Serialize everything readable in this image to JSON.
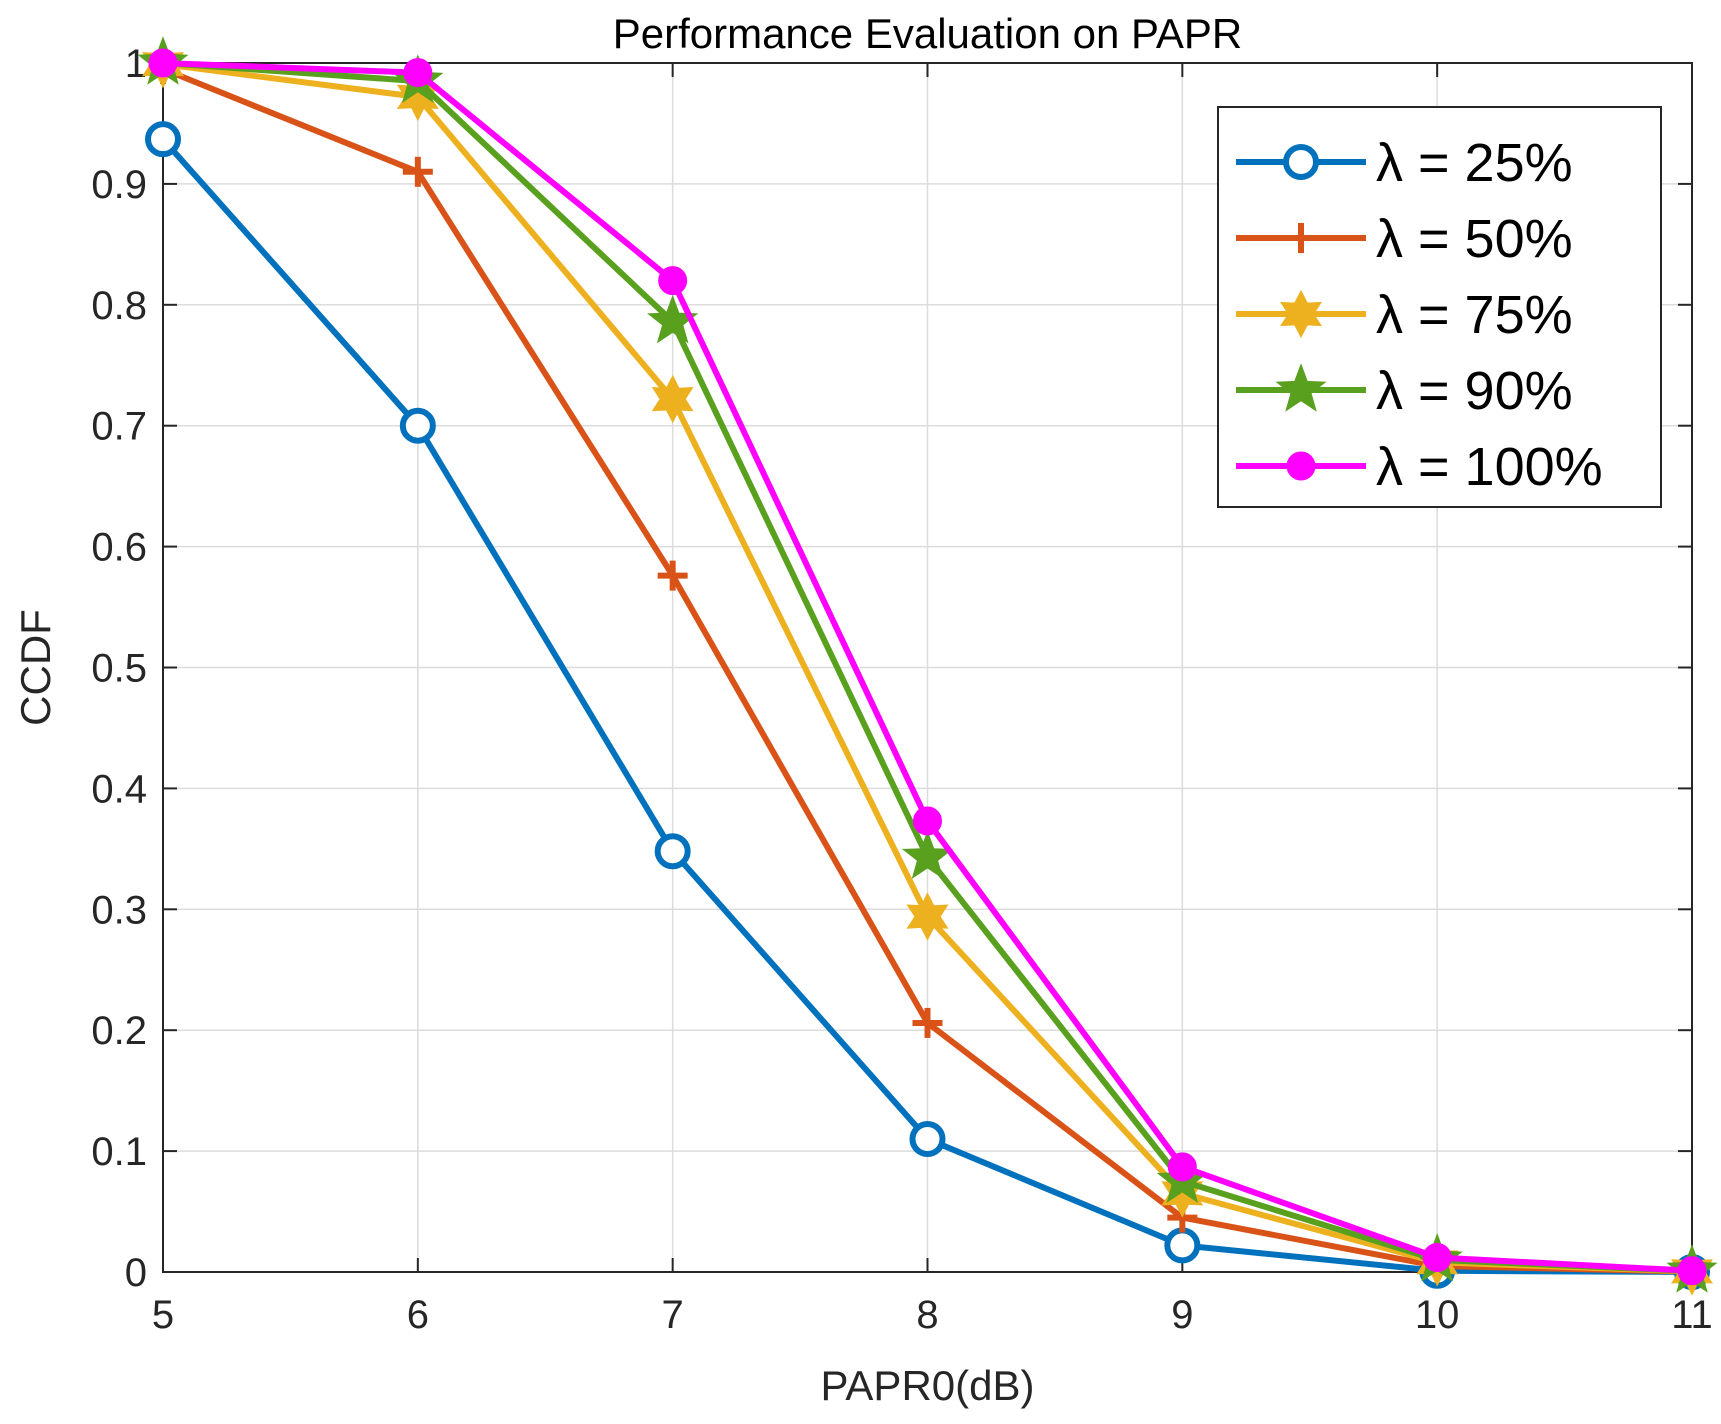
{
  "chart_data": {
    "type": "line",
    "title": "Performance Evaluation on PAPR",
    "xlabel": "PAPR0(dB)",
    "ylabel": "CCDF",
    "xlim": [
      5,
      11
    ],
    "ylim": [
      0,
      1
    ],
    "x": [
      5,
      6,
      7,
      8,
      9,
      10,
      11
    ],
    "xticks": [
      5,
      6,
      7,
      8,
      9,
      10,
      11
    ],
    "yticks": [
      0,
      0.1,
      0.2,
      0.3,
      0.4,
      0.5,
      0.6,
      0.7,
      0.8,
      0.9,
      1
    ],
    "xtick_labels": [
      "5",
      "6",
      "7",
      "8",
      "9",
      "10",
      "11"
    ],
    "ytick_labels": [
      "0",
      "0.1",
      "0.2",
      "0.3",
      "0.4",
      "0.5",
      "0.6",
      "0.7",
      "0.8",
      "0.9",
      "1"
    ],
    "grid": true,
    "legend_position": "top-right",
    "series": [
      {
        "name": "λ = 25%",
        "color": "#0072BD",
        "marker": "circle",
        "values": [
          0.937,
          0.7,
          0.348,
          0.11,
          0.022,
          0.001,
          0.0
        ]
      },
      {
        "name": "λ = 50%",
        "color": "#D95319",
        "marker": "plus",
        "values": [
          0.995,
          0.91,
          0.576,
          0.206,
          0.045,
          0.005,
          0.0003
        ]
      },
      {
        "name": "λ = 75%",
        "color": "#EDB120",
        "marker": "hexagram",
        "values": [
          0.999,
          0.972,
          0.722,
          0.294,
          0.065,
          0.008,
          0.0005
        ]
      },
      {
        "name": "λ = 90%",
        "color": "#58A01E",
        "marker": "pentagram",
        "values": [
          1.0,
          0.985,
          0.786,
          0.343,
          0.075,
          0.01,
          0.0008
        ]
      },
      {
        "name": "λ = 100%",
        "color": "#FF00FF",
        "marker": "filled-circle",
        "values": [
          1.0,
          0.992,
          0.82,
          0.373,
          0.087,
          0.012,
          0.001
        ]
      }
    ]
  }
}
